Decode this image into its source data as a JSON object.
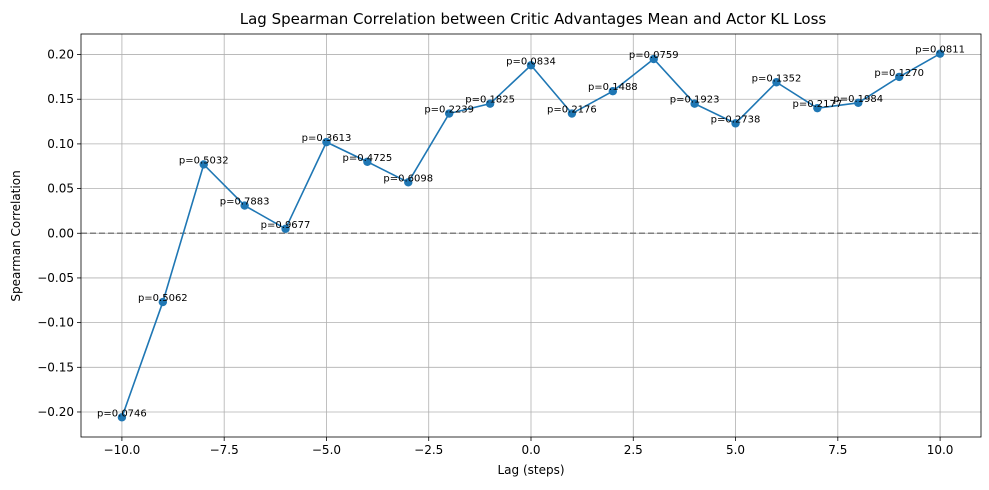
{
  "chart_data": {
    "type": "line",
    "title": "Lag Spearman Correlation between Critic Advantages Mean and Actor KL Loss",
    "xlabel": "Lag (steps)",
    "ylabel": "Spearman Correlation",
    "xlim": [
      -11,
      11
    ],
    "ylim": [
      -0.228,
      0.223
    ],
    "x_ticks": [
      -10.0,
      -7.5,
      -5.0,
      -2.5,
      0.0,
      2.5,
      5.0,
      7.5,
      10.0
    ],
    "x_tick_labels": [
      "−10.0",
      "−7.5",
      "−5.0",
      "−2.5",
      "0.0",
      "2.5",
      "5.0",
      "7.5",
      "10.0"
    ],
    "y_ticks": [
      -0.2,
      -0.15,
      -0.1,
      -0.05,
      0.0,
      0.05,
      0.1,
      0.15,
      0.2
    ],
    "y_tick_labels": [
      "−0.20",
      "−0.15",
      "−0.10",
      "−0.05",
      "0.00",
      "0.05",
      "0.10",
      "0.15",
      "0.20"
    ],
    "grid": true,
    "reference_line": {
      "y": 0,
      "style": "dashed",
      "color": "#808080"
    },
    "line_color": "#1f77b4",
    "series": [
      {
        "x": [
          -10,
          -9,
          -8,
          -7,
          -6,
          -5,
          -4,
          -3,
          -2,
          -1,
          0,
          1,
          2,
          3,
          4,
          5,
          6,
          7,
          8,
          9,
          10
        ],
        "values": [
          -0.206,
          -0.077,
          0.077,
          0.031,
          0.005,
          0.102,
          0.08,
          0.057,
          0.134,
          0.145,
          0.188,
          0.134,
          0.159,
          0.195,
          0.145,
          0.123,
          0.169,
          0.14,
          0.146,
          0.175,
          0.201
        ],
        "labels": [
          "p=0.0746",
          "p=0.5062",
          "p=0.5032",
          "p=0.7883",
          "p=0.9677",
          "p=0.3613",
          "p=0.4725",
          "p=0.6098",
          "p=0.2239",
          "p=0.1825",
          "p=0.0834",
          "p=0.2176",
          "p=0.1488",
          "p=0.0759",
          "p=0.1923",
          "p=0.2738",
          "p=0.1352",
          "p=0.2177",
          "p=0.1984",
          "p=0.1270",
          "p=0.0811"
        ]
      }
    ]
  }
}
